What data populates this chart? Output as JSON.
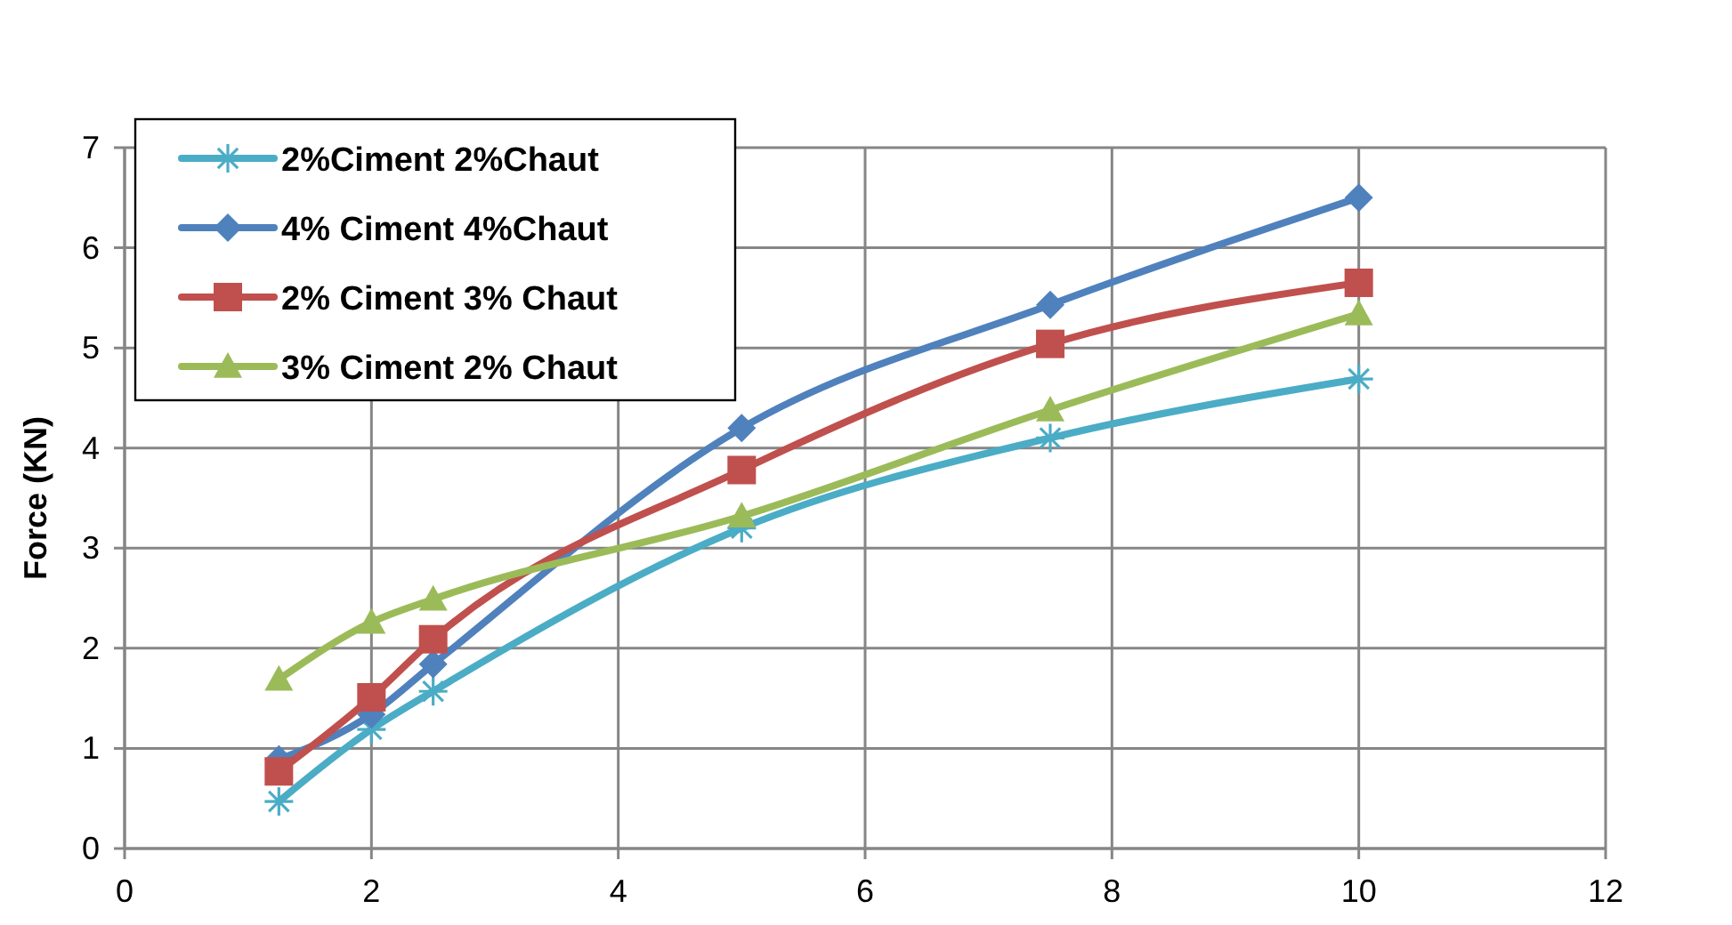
{
  "chart_data": {
    "type": "line",
    "ylabel": "Force (KN)",
    "x": [
      1.25,
      2,
      2.5,
      5,
      7.5,
      10
    ],
    "series": [
      {
        "name": "2%Ciment 2%Chaut",
        "color": "#4bacc6",
        "marker": "cross",
        "values": [
          0.47,
          1.19,
          1.57,
          3.2,
          4.1,
          4.69
        ]
      },
      {
        "name": "4% Ciment 4%Chaut",
        "color": "#4f81bd",
        "marker": "diamond",
        "values": [
          0.89,
          1.34,
          1.84,
          4.2,
          5.43,
          6.5
        ]
      },
      {
        "name": "2% Ciment 3% Chaut",
        "color": "#c0504d",
        "marker": "square",
        "values": [
          0.77,
          1.51,
          2.09,
          3.78,
          5.04,
          5.65
        ]
      },
      {
        "name": "3% Ciment 2% Chaut",
        "color": "#9bbb59",
        "marker": "triangle",
        "values": [
          1.69,
          2.26,
          2.49,
          3.32,
          4.38,
          5.34
        ]
      }
    ],
    "xlim": [
      0,
      12
    ],
    "xticks": [
      0,
      2,
      4,
      6,
      8,
      10,
      12
    ],
    "ylim": [
      0,
      7
    ],
    "yticks": [
      0,
      1,
      2,
      3,
      4,
      5,
      6,
      7
    ],
    "grid": true,
    "legend": "top left",
    "line_style": "solid"
  }
}
